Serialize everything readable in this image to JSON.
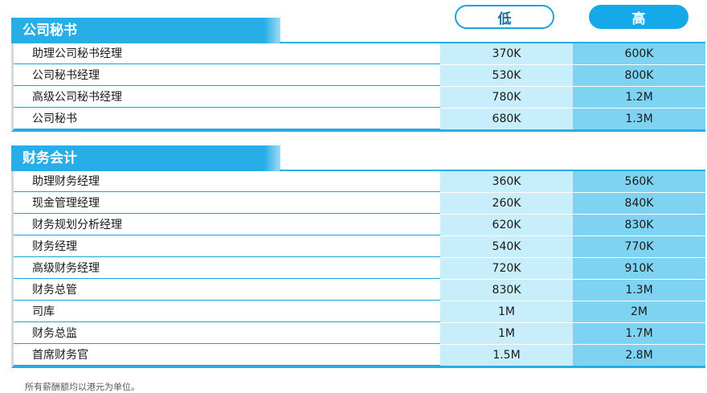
{
  "header": {
    "low_label": "低",
    "high_label": "高"
  },
  "sections": [
    {
      "title": "公司秘书",
      "rows": [
        {
          "name": "助理公司秘书经理",
          "low": "370K",
          "high": "600K"
        },
        {
          "name": "公司秘书经理",
          "low": "530K",
          "high": "800K"
        },
        {
          "name": "高级公司秘书经理",
          "low": "780K",
          "high": "1.2M"
        },
        {
          "name": "公司秘书",
          "low": "680K",
          "high": "1.3M"
        }
      ]
    },
    {
      "title": "财务会计",
      "rows": [
        {
          "name": "助理财务经理",
          "low": "360K",
          "high": "560K"
        },
        {
          "name": "现金管理经理",
          "low": "260K",
          "high": "840K"
        },
        {
          "name": "财务规划分析经理",
          "low": "620K",
          "high": "830K"
        },
        {
          "name": "财务经理",
          "low": "540K",
          "high": "770K"
        },
        {
          "name": "高级财务经理",
          "low": "720K",
          "high": "910K"
        },
        {
          "name": "财务总管",
          "low": "830K",
          "high": "1.3M"
        },
        {
          "name": "司库",
          "low": "1M",
          "high": "2M"
        },
        {
          "name": "财务总监",
          "low": "1M",
          "high": "1.7M"
        },
        {
          "name": "首席财务官",
          "low": "1.5M",
          "high": "2.8M"
        }
      ]
    }
  ],
  "footnote": "所有薪酬额均以港元为单位。"
}
